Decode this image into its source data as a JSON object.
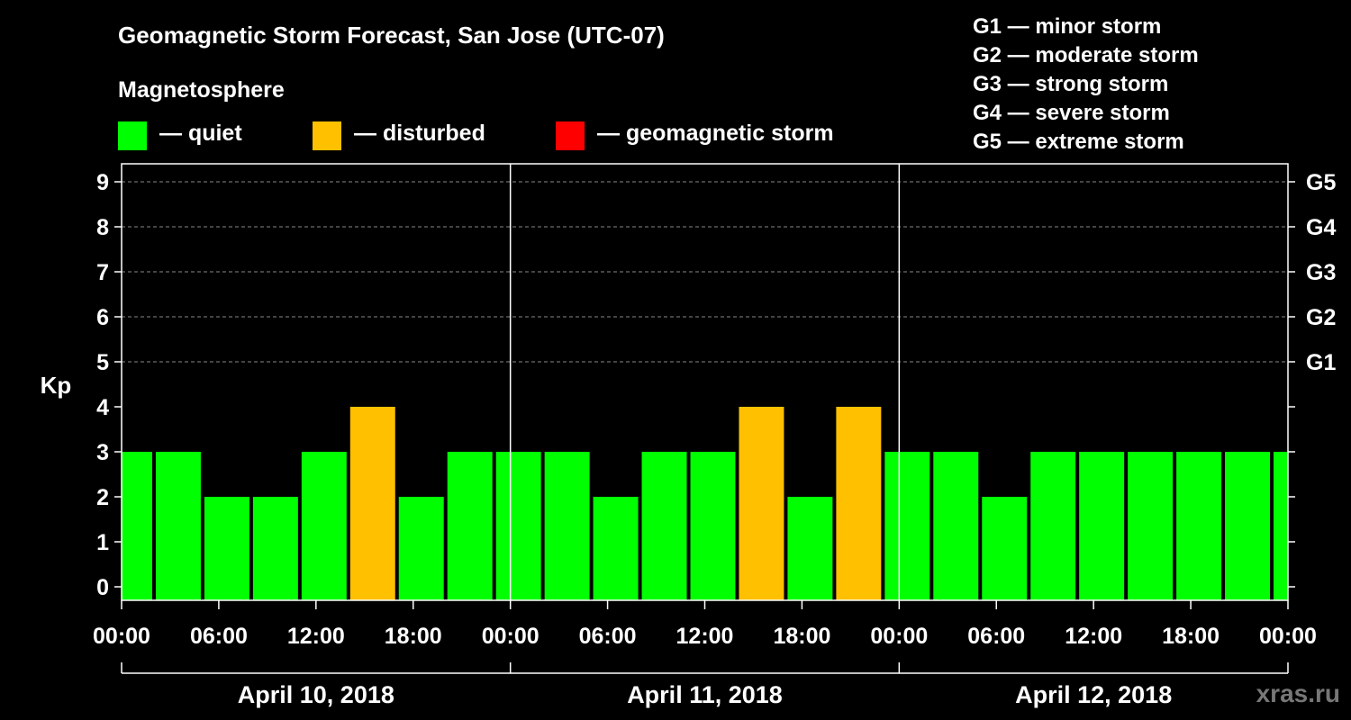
{
  "title": "Geomagnetic Storm Forecast, San Jose (UTC-07)",
  "magnetosphere": {
    "title": "Magnetosphere",
    "legend": [
      {
        "label": "— quiet",
        "color": "#00ff00"
      },
      {
        "label": "— disturbed",
        "color": "#ffc000"
      },
      {
        "label": "— geomagnetic storm",
        "color": "#ff0000"
      }
    ]
  },
  "g_levels": [
    "G1 — minor storm",
    "G2 — moderate storm",
    "G3 — strong storm",
    "G4 — severe storm",
    "G5 — extreme storm"
  ],
  "watermark": "xras.ru",
  "colors": {
    "quiet": "#00ff00",
    "disturbed": "#ffc000",
    "storm": "#ff0000",
    "grid": "#888888"
  },
  "chart_data": {
    "type": "bar",
    "ylabel": "Kp",
    "ylim": [
      0,
      9
    ],
    "yticks": [
      0,
      1,
      2,
      3,
      4,
      5,
      6,
      7,
      8,
      9
    ],
    "right_axis_labels": [
      {
        "kp": 5,
        "label": "G1"
      },
      {
        "kp": 6,
        "label": "G2"
      },
      {
        "kp": 7,
        "label": "G3"
      },
      {
        "kp": 8,
        "label": "G4"
      },
      {
        "kp": 9,
        "label": "G5"
      }
    ],
    "xlim_hours": [
      0,
      72
    ],
    "xticks": [
      {
        "hour": 0,
        "label": "00:00"
      },
      {
        "hour": 6,
        "label": "06:00"
      },
      {
        "hour": 12,
        "label": "12:00"
      },
      {
        "hour": 18,
        "label": "18:00"
      },
      {
        "hour": 24,
        "label": "00:00"
      },
      {
        "hour": 30,
        "label": "06:00"
      },
      {
        "hour": 36,
        "label": "12:00"
      },
      {
        "hour": 42,
        "label": "18:00"
      },
      {
        "hour": 48,
        "label": "00:00"
      },
      {
        "hour": 54,
        "label": "06:00"
      },
      {
        "hour": 60,
        "label": "12:00"
      },
      {
        "hour": 66,
        "label": "18:00"
      },
      {
        "hour": 72,
        "label": "00:00"
      }
    ],
    "days": [
      {
        "label": "April 10, 2018",
        "start_hour": 0,
        "end_hour": 24
      },
      {
        "label": "April 11, 2018",
        "start_hour": 24,
        "end_hour": 48
      },
      {
        "label": "April 12, 2018",
        "start_hour": 48,
        "end_hour": 72
      }
    ],
    "bars": [
      {
        "start_hour": -1,
        "end_hour": 2,
        "kp": 3,
        "status": "quiet"
      },
      {
        "start_hour": 2,
        "end_hour": 5,
        "kp": 3,
        "status": "quiet"
      },
      {
        "start_hour": 5,
        "end_hour": 8,
        "kp": 2,
        "status": "quiet"
      },
      {
        "start_hour": 8,
        "end_hour": 11,
        "kp": 2,
        "status": "quiet"
      },
      {
        "start_hour": 11,
        "end_hour": 14,
        "kp": 3,
        "status": "quiet"
      },
      {
        "start_hour": 14,
        "end_hour": 17,
        "kp": 4,
        "status": "disturbed"
      },
      {
        "start_hour": 17,
        "end_hour": 20,
        "kp": 2,
        "status": "quiet"
      },
      {
        "start_hour": 20,
        "end_hour": 23,
        "kp": 3,
        "status": "quiet"
      },
      {
        "start_hour": 23,
        "end_hour": 26,
        "kp": 3,
        "status": "quiet"
      },
      {
        "start_hour": 26,
        "end_hour": 29,
        "kp": 3,
        "status": "quiet"
      },
      {
        "start_hour": 29,
        "end_hour": 32,
        "kp": 2,
        "status": "quiet"
      },
      {
        "start_hour": 32,
        "end_hour": 35,
        "kp": 3,
        "status": "quiet"
      },
      {
        "start_hour": 35,
        "end_hour": 38,
        "kp": 3,
        "status": "quiet"
      },
      {
        "start_hour": 38,
        "end_hour": 41,
        "kp": 4,
        "status": "disturbed"
      },
      {
        "start_hour": 41,
        "end_hour": 44,
        "kp": 2,
        "status": "quiet"
      },
      {
        "start_hour": 44,
        "end_hour": 47,
        "kp": 4,
        "status": "disturbed"
      },
      {
        "start_hour": 47,
        "end_hour": 50,
        "kp": 3,
        "status": "quiet"
      },
      {
        "start_hour": 50,
        "end_hour": 53,
        "kp": 3,
        "status": "quiet"
      },
      {
        "start_hour": 53,
        "end_hour": 56,
        "kp": 2,
        "status": "quiet"
      },
      {
        "start_hour": 56,
        "end_hour": 59,
        "kp": 3,
        "status": "quiet"
      },
      {
        "start_hour": 59,
        "end_hour": 62,
        "kp": 3,
        "status": "quiet"
      },
      {
        "start_hour": 62,
        "end_hour": 65,
        "kp": 3,
        "status": "quiet"
      },
      {
        "start_hour": 65,
        "end_hour": 68,
        "kp": 3,
        "status": "quiet"
      },
      {
        "start_hour": 68,
        "end_hour": 71,
        "kp": 3,
        "status": "quiet"
      },
      {
        "start_hour": 71,
        "end_hour": 74,
        "kp": 3,
        "status": "quiet"
      }
    ]
  }
}
